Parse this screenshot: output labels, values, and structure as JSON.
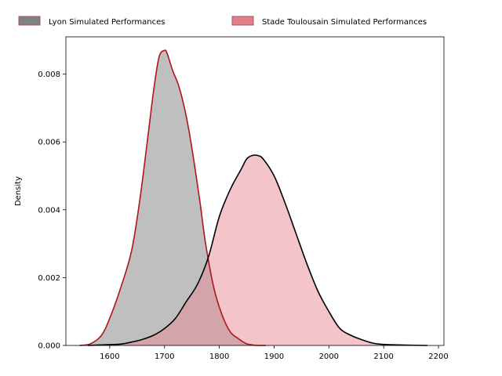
{
  "chart_data": {
    "type": "area",
    "subtype": "kde",
    "title": "",
    "xlabel": "",
    "ylabel": "Density",
    "xlim": [
      1520,
      2210
    ],
    "ylim": [
      0,
      0.0091
    ],
    "xticks": [
      1600,
      1700,
      1800,
      1900,
      2000,
      2100,
      2200
    ],
    "xtick_labels": [
      "1600",
      "1700",
      "1800",
      "1900",
      "2000",
      "2100",
      "2200"
    ],
    "yticks": [
      0,
      0.002,
      0.004,
      0.006,
      0.008
    ],
    "ytick_labels": [
      "0.000",
      "0.002",
      "0.004",
      "0.006",
      "0.008"
    ],
    "grid": false,
    "legend_position": "top-center",
    "series": [
      {
        "name": "Lyon Simulated Performances",
        "fill": "#808080",
        "fill_opacity": 0.5,
        "line": "#b0141e",
        "legend_fill": "#808080",
        "legend_edge": "#b05060",
        "x": [
          1545,
          1565,
          1585,
          1600,
          1620,
          1640,
          1655,
          1670,
          1680,
          1690,
          1700,
          1705,
          1715,
          1725,
          1735,
          1745,
          1755,
          1765,
          1775,
          1790,
          1805,
          1820,
          1835,
          1850,
          1870,
          1885
        ],
        "y": [
          0.0,
          5e-05,
          0.0003,
          0.0008,
          0.0017,
          0.0028,
          0.0043,
          0.0062,
          0.0075,
          0.0085,
          0.0087,
          0.0086,
          0.0081,
          0.0077,
          0.0071,
          0.0063,
          0.0053,
          0.0042,
          0.003,
          0.0017,
          0.0009,
          0.0004,
          0.0002,
          5e-05,
          0.0,
          0.0
        ]
      },
      {
        "name": "Stade Toulousain Simulated Performances",
        "fill": "#e88a94",
        "fill_opacity": 0.5,
        "line": "#000000",
        "legend_fill": "#e0808a",
        "legend_edge": "#b05060",
        "x": [
          1560,
          1590,
          1620,
          1640,
          1660,
          1680,
          1700,
          1720,
          1740,
          1760,
          1780,
          1800,
          1820,
          1840,
          1850,
          1860,
          1870,
          1880,
          1900,
          1920,
          1940,
          1960,
          1980,
          2000,
          2020,
          2040,
          2060,
          2080,
          2100,
          2140,
          2180
        ],
        "y": [
          0.0,
          2e-05,
          4e-05,
          0.0001,
          0.00018,
          0.0003,
          0.0005,
          0.0008,
          0.0013,
          0.0018,
          0.0026,
          0.0038,
          0.0046,
          0.0052,
          0.0055,
          0.0056,
          0.0056,
          0.0055,
          0.005,
          0.0042,
          0.0033,
          0.0024,
          0.0016,
          0.001,
          0.0005,
          0.0003,
          0.00017,
          7e-05,
          3e-05,
          1e-05,
          0.0
        ]
      }
    ]
  }
}
